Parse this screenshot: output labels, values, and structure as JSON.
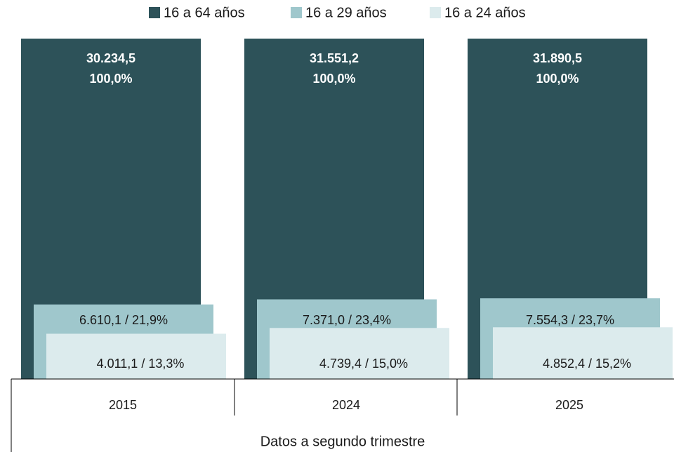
{
  "chart_data": {
    "type": "overlapped_bar",
    "categories": [
      "2015",
      "2024",
      "2025"
    ],
    "xlabel": "Datos a segundo trimestre",
    "ylim": [
      0,
      100
    ],
    "label_separator": " / ",
    "series": [
      {
        "name": "16 a 64 años",
        "color": "#2d5259",
        "label_color": "#ffffff",
        "values": [
          100,
          100,
          100
        ],
        "value_labels": [
          "100,0%",
          "100,0%",
          "100,0%"
        ],
        "totals": [
          30234.5,
          31551.2,
          31890.5
        ],
        "total_labels": [
          "30.234,5",
          "31.551,2",
          "31.890,5"
        ]
      },
      {
        "name": "16 a 29 años",
        "color": "#9fc7cc",
        "label_color": "#1a1a1a",
        "values": [
          21.9,
          23.4,
          23.7
        ],
        "value_labels": [
          "21,9%",
          "23,4%",
          "23,7%"
        ],
        "totals": [
          6610.1,
          7371.0,
          7554.3
        ],
        "total_labels": [
          "6.610,1",
          "7.371,0",
          "7.554,3"
        ]
      },
      {
        "name": "16 a 24 años",
        "color": "#dcebed",
        "label_color": "#1a1a1a",
        "values": [
          13.3,
          15.0,
          15.2
        ],
        "value_labels": [
          "13,3%",
          "15,0%",
          "15,2%"
        ],
        "totals": [
          4011.1,
          4739.4,
          4852.4
        ],
        "total_labels": [
          "4.011,1",
          "4.739,4",
          "4.852,4"
        ]
      }
    ]
  }
}
